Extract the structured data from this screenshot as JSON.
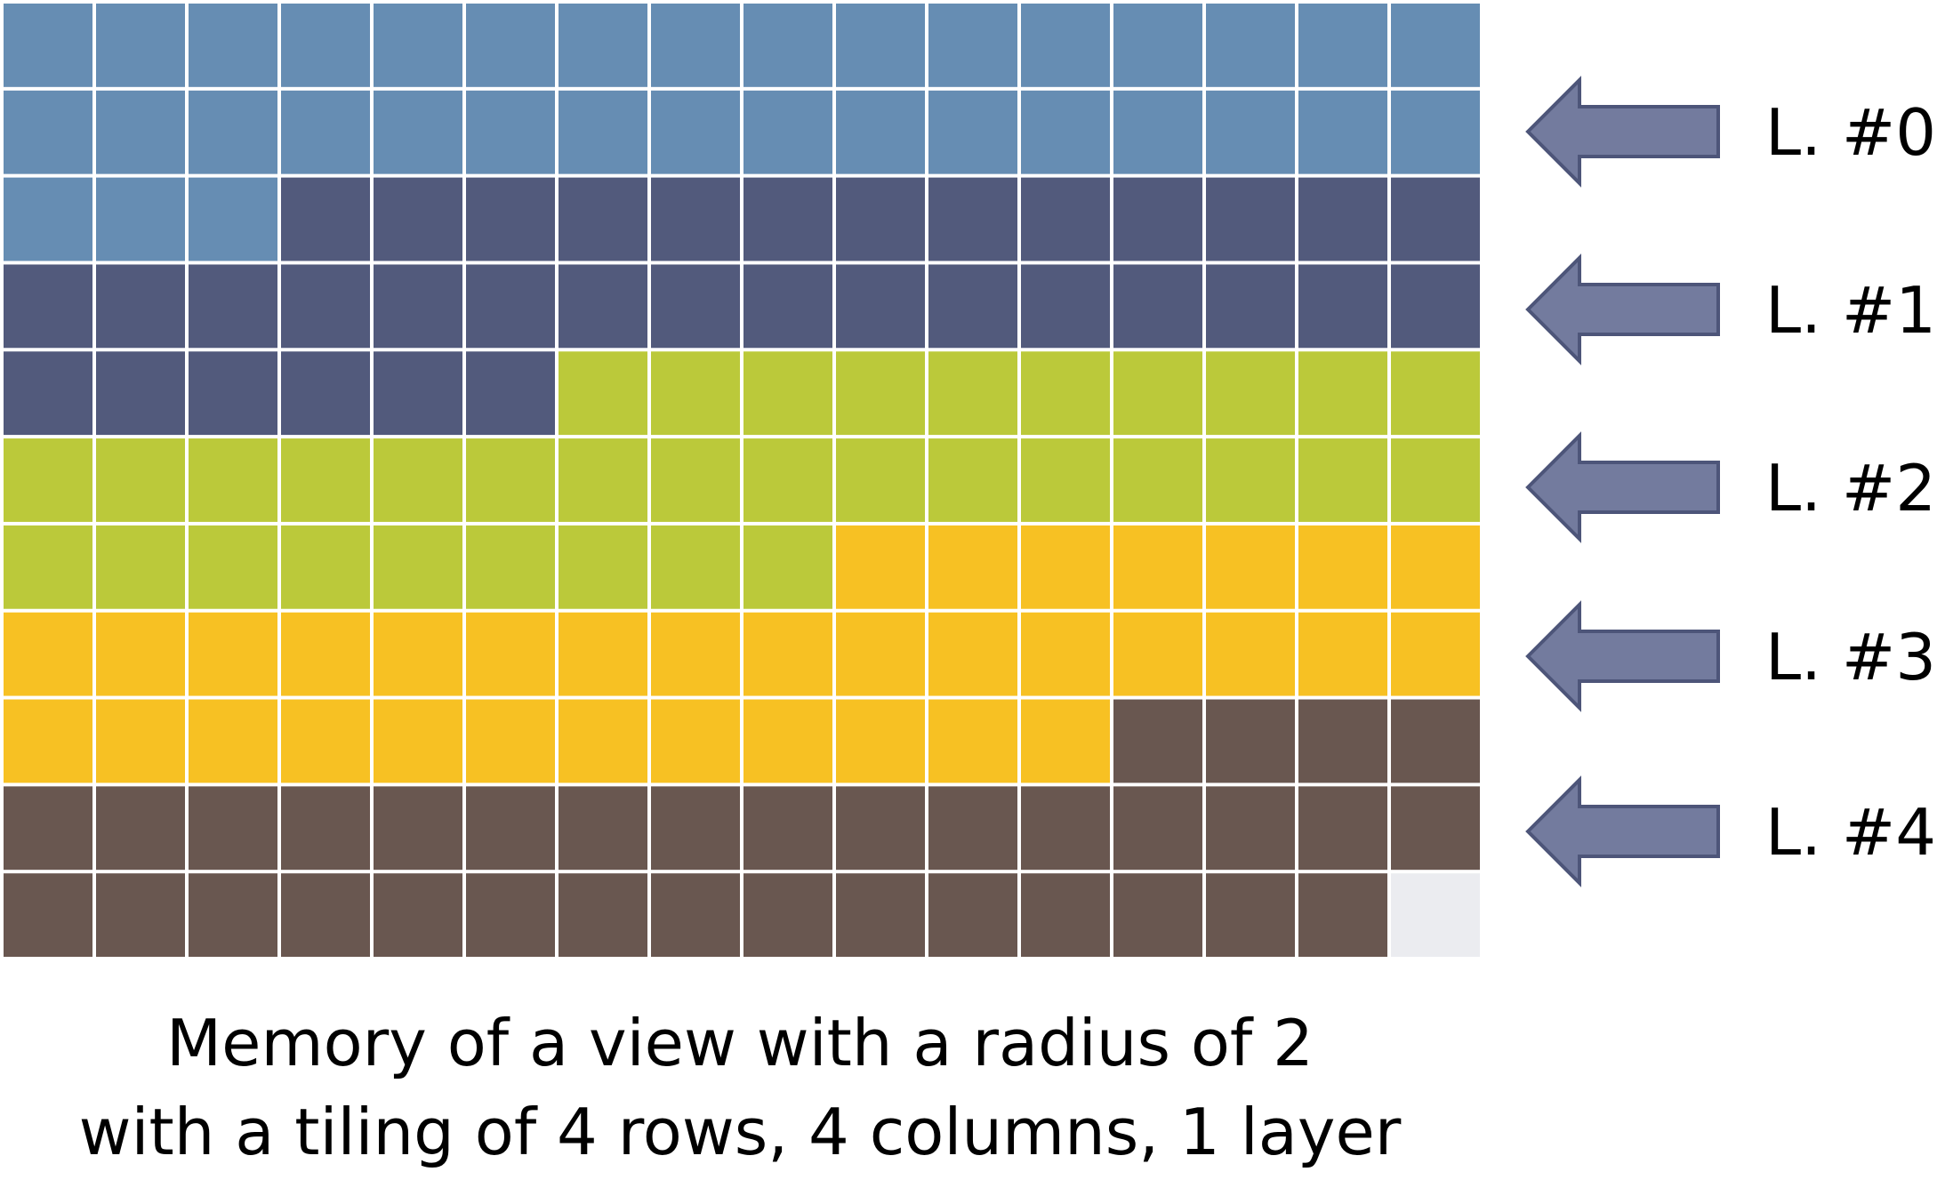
{
  "caption": {
    "line1": "Memory of a view with a radius of 2",
    "line2": "with a tiling of 4 rows, 4 columns, 1 layer"
  },
  "grid": {
    "rows": 11,
    "columns": 16,
    "cells_per_layer": 35,
    "layer_count": 5
  },
  "layers": [
    {
      "label": "L. #0",
      "color": "#668db3",
      "arrow_color": "#737b9e",
      "start_cell": 0,
      "cell_count": 35
    },
    {
      "label": "L. #1",
      "color": "#525a7c",
      "arrow_color": "#737b9e",
      "start_cell": 35,
      "cell_count": 35
    },
    {
      "label": "L. #2",
      "color": "#bbc93a",
      "arrow_color": "#737b9e",
      "start_cell": 70,
      "cell_count": 35
    },
    {
      "label": "L. #3",
      "color": "#f7c123",
      "arrow_color": "#737b9e",
      "start_cell": 105,
      "cell_count": 35
    },
    {
      "label": "L. #4",
      "color": "#695750",
      "arrow_color": "#737b9e",
      "start_cell": 140,
      "cell_count": 35
    }
  ],
  "empty_cell_color": "#ebecf0",
  "arrow_stroke_color": "#4d5579"
}
